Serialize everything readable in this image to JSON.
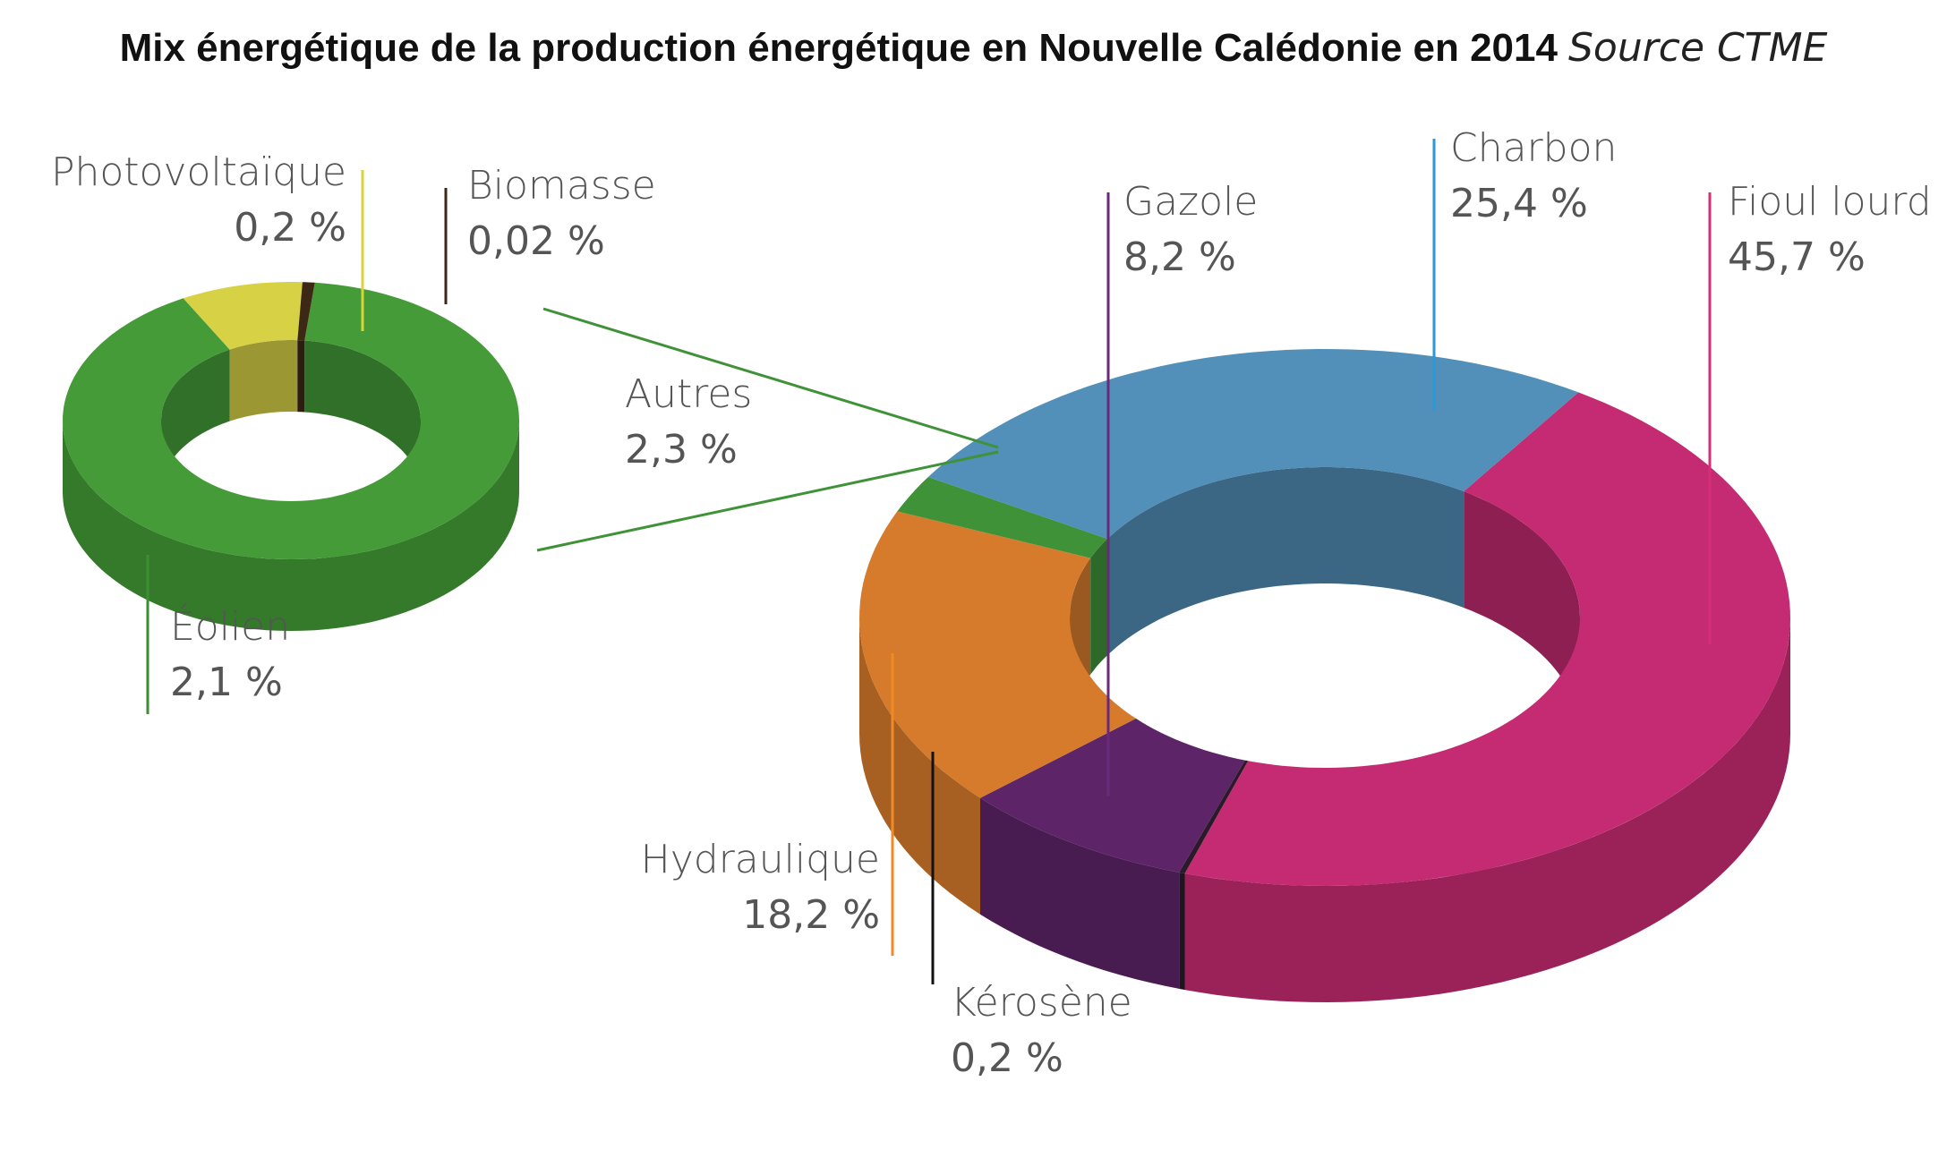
{
  "title": "Mix énergétique de la production énergétique en Nouvelle Calédonie en 2014",
  "source": "Source CTME",
  "chart_data": [
    {
      "type": "pie",
      "variant": "3d-donut",
      "slices": [
        {
          "name": "Fioul lourd",
          "label": "45,7 %",
          "value": 45.7,
          "color": "#c52b72"
        },
        {
          "name": "Kérosène",
          "label": "0,2 %",
          "value": 0.2,
          "color": "#2a1a2a"
        },
        {
          "name": "Gazole",
          "label": "8,2 %",
          "value": 8.2,
          "color": "#5e2468"
        },
        {
          "name": "Hydraulique",
          "label": "18,2 %",
          "value": 18.2,
          "color": "#d67b2c"
        },
        {
          "name": "Autres",
          "label": "2,3 %",
          "value": 2.3,
          "color": "#3f9237"
        },
        {
          "name": "Charbon",
          "label": "25,4 %",
          "value": 25.4,
          "color": "#528fb9"
        }
      ]
    },
    {
      "type": "pie",
      "variant": "3d-donut",
      "slices": [
        {
          "name": "Éolien",
          "label": "2,1 %",
          "value": 2.1,
          "color": "#449b37"
        },
        {
          "name": "Photovoltaïque",
          "label": "0,2 %",
          "value": 0.2,
          "color": "#d7d245"
        },
        {
          "name": "Biomasse",
          "label": "0,02 %",
          "value": 0.02,
          "color": "#3d2816"
        }
      ]
    }
  ]
}
